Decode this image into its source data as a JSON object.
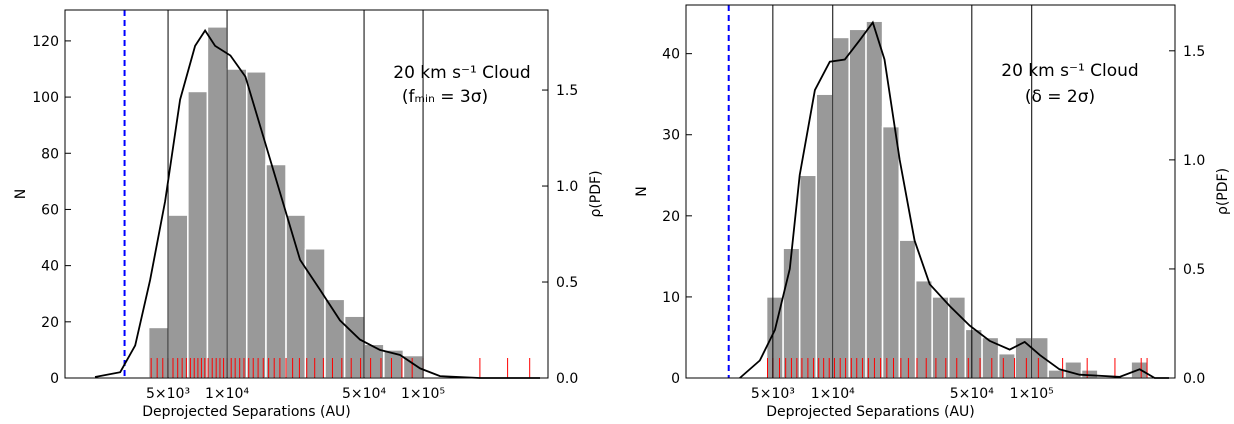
{
  "chart_data": [
    {
      "type": "histogram",
      "xscale": "log",
      "xlim": [
        1490,
        434000
      ],
      "ylim": [
        0,
        131
      ],
      "y2lim": [
        0,
        1.917
      ],
      "xticks": [
        {
          "value": 5000,
          "label": "5×10³"
        },
        {
          "value": 10000,
          "label": "1×10⁴"
        },
        {
          "value": 50000,
          "label": "5×10⁴"
        },
        {
          "value": 100000,
          "label": "1×10⁵"
        }
      ],
      "yticks": [
        0,
        20,
        40,
        60,
        80,
        100,
        120
      ],
      "y2ticks": [
        {
          "value": 0,
          "label": "0.0"
        },
        0.5,
        {
          "value": 1,
          "label": "1.0"
        },
        1.5
      ],
      "xlabel": "Deprojected Separations (AU)",
      "ylabel": "N",
      "y2label": "ρ(PDF)",
      "annotations": [
        "20 km s⁻¹ Cloud",
        "(fₘᵢₙ = 3σ)"
      ],
      "bins": [
        3980,
        5010,
        6310,
        7940,
        10000,
        12600,
        15800,
        20000,
        25100,
        31600,
        39800,
        50100,
        63100,
        79400,
        100000
      ],
      "counts": [
        18,
        58,
        102,
        125,
        110,
        109,
        76,
        58,
        46,
        28,
        22,
        12,
        10,
        8
      ],
      "color": "#999999",
      "kde": {
        "color": "#000000",
        "axis": "y2",
        "x": [
          2120,
          2850,
          3400,
          4050,
          4830,
          5760,
          6870,
          7730,
          8690,
          10400,
          12400,
          15600,
          19800,
          23600,
          29800,
          37700,
          47700,
          60400,
          76400,
          96600,
          122000,
          195000,
          395000
        ],
        "values": [
          0.005,
          0.03,
          0.17,
          0.51,
          0.92,
          1.45,
          1.73,
          1.81,
          1.73,
          1.68,
          1.57,
          1.23,
          0.875,
          0.615,
          0.46,
          0.3,
          0.2,
          0.146,
          0.12,
          0.05,
          0.01,
          0,
          0
        ]
      },
      "rug": {
        "color": "#ff0000",
        "values": [
          4100,
          4400,
          4700,
          5000,
          5300,
          5600,
          5900,
          6200,
          6500,
          6800,
          7100,
          7400,
          7700,
          8000,
          8400,
          8800,
          9200,
          9600,
          10000,
          10500,
          11000,
          11600,
          12200,
          12900,
          13600,
          14400,
          15300,
          16300,
          17400,
          18600,
          20000,
          21600,
          23400,
          25500,
          28000,
          31000,
          34500,
          38500,
          43000,
          48000,
          54000,
          61000,
          69000,
          78000,
          88000,
          100000,
          195000,
          270000,
          350000
        ]
      },
      "vline": {
        "value": 3000,
        "color": "#0000ff"
      }
    },
    {
      "type": "histogram",
      "xscale": "log",
      "xlim": [
        1830,
        525000
      ],
      "ylim": [
        0,
        46
      ],
      "y2lim": [
        0,
        1.71
      ],
      "xticks": [
        {
          "value": 5000,
          "label": "5×10³"
        },
        {
          "value": 10000,
          "label": "1×10⁴"
        },
        {
          "value": 50000,
          "label": "5×10⁴"
        },
        {
          "value": 100000,
          "label": "1×10⁵"
        }
      ],
      "yticks": [
        0,
        10,
        20,
        30,
        40
      ],
      "y2ticks": [
        {
          "value": 0,
          "label": "0.0"
        },
        0.5,
        {
          "value": 1,
          "label": "1.0"
        },
        1.5
      ],
      "xlabel": "Deprojected Separations (AU)",
      "ylabel": "N",
      "y2label": "ρ(PDF)",
      "annotations": [
        "20 km s⁻¹ Cloud",
        "(δ = 2σ)"
      ],
      "bins": [
        4650,
        5630,
        6820,
        8260,
        10000,
        12100,
        14700,
        17800,
        21600,
        26100,
        31600,
        38300,
        46400,
        56300,
        68200,
        82600,
        100000,
        121000,
        147000,
        178000,
        215000,
        261000,
        316000,
        383000
      ],
      "counts": [
        10,
        16,
        25,
        35,
        42,
        43,
        44,
        31,
        17,
        12,
        10,
        10,
        6,
        5,
        3,
        5,
        5,
        1,
        2,
        1,
        0,
        0,
        2
      ],
      "color": "#999999",
      "kde": {
        "color": "#000000",
        "axis": "y2",
        "x": [
          3410,
          4300,
          5120,
          6080,
          6820,
          8130,
          9660,
          11500,
          13700,
          15900,
          18200,
          21700,
          25800,
          30700,
          38700,
          48800,
          61500,
          77500,
          92200,
          110000,
          138000,
          174000,
          277000,
          349000,
          415000,
          490000
        ],
        "values": [
          0,
          0.08,
          0.22,
          0.5,
          0.93,
          1.32,
          1.45,
          1.46,
          1.55,
          1.63,
          1.46,
          1,
          0.63,
          0.43,
          0.33,
          0.24,
          0.17,
          0.13,
          0.165,
          0.105,
          0.04,
          0.015,
          0.005,
          0.04,
          0,
          0
        ]
      },
      "rug": {
        "color": "#ff0000",
        "values": [
          4700,
          5000,
          5400,
          5800,
          6200,
          6600,
          7000,
          7500,
          8000,
          8500,
          9000,
          9600,
          10200,
          10900,
          11600,
          12400,
          13200,
          14100,
          15100,
          16200,
          17400,
          18700,
          20200,
          22000,
          24000,
          26500,
          29500,
          33000,
          37000,
          42000,
          48000,
          55000,
          63000,
          72000,
          82000,
          94000,
          108000,
          143000,
          190000,
          262000,
          355000,
          380000
        ]
      },
      "vline": {
        "value": 3000,
        "color": "#0000ff"
      }
    }
  ]
}
